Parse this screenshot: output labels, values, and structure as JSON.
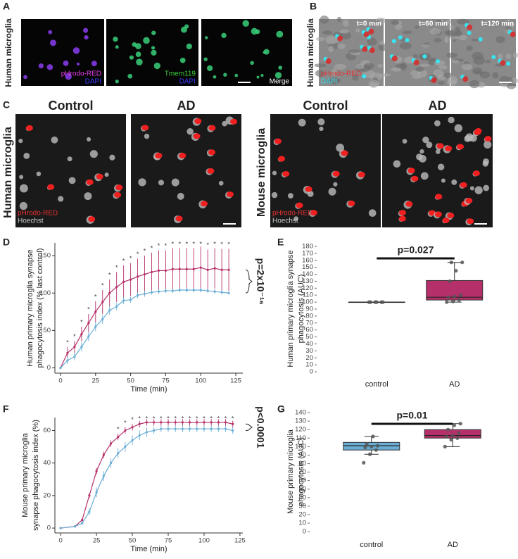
{
  "figure": {
    "A": {
      "letter": "A",
      "side_label": "Human microglia",
      "images": [
        {
          "labels": [
            "pHrodo-RED",
            "DAPI"
          ]
        },
        {
          "labels": [
            "Tmem119",
            "DAPI"
          ]
        },
        {
          "labels": [
            "Merge"
          ]
        }
      ]
    },
    "B": {
      "letter": "B",
      "side_label": "Human microglia",
      "images": [
        {
          "time": "t=0 min",
          "labels": [
            "pHrodo-RED",
            "DAPI"
          ]
        },
        {
          "time": "t=60 min"
        },
        {
          "time": "t=120 min"
        }
      ]
    },
    "C": {
      "letter": "C",
      "groups": [
        {
          "side_label": "Human microglia",
          "headers": [
            "Control",
            "AD"
          ],
          "labels": [
            "pHrodo-RED",
            "Hoechst"
          ]
        },
        {
          "side_label": "Mouse microglia",
          "headers": [
            "Control",
            "AD"
          ],
          "labels": [
            "pHrodo-RED",
            "Hoechst"
          ]
        }
      ]
    }
  },
  "chart_data": [
    {
      "type": "line",
      "panel_label": "D",
      "ylabel": [
        "Human primary microglia synapse",
        "phagocytosis index (% last control)"
      ],
      "xlabel": "Time (min)",
      "x": [
        0,
        5,
        10,
        15,
        20,
        25,
        30,
        35,
        40,
        45,
        50,
        55,
        60,
        65,
        70,
        75,
        80,
        85,
        90,
        95,
        100,
        105,
        110,
        115,
        120
      ],
      "series": [
        {
          "color": "#b5306a",
          "values": [
            0,
            20,
            28,
            45,
            60,
            75,
            88,
            100,
            108,
            115,
            118,
            122,
            125,
            128,
            130,
            130,
            132,
            132,
            132,
            132,
            134,
            131,
            133,
            131,
            131
          ],
          "errors": [
            0,
            8,
            8,
            10,
            12,
            14,
            16,
            18,
            20,
            22,
            22,
            24,
            25,
            26,
            27,
            27,
            28,
            28,
            28,
            28,
            28,
            27,
            27,
            28,
            28
          ]
        },
        {
          "color": "#6aaed6",
          "values": [
            0,
            10,
            15,
            28,
            42,
            55,
            65,
            77,
            82,
            90,
            91,
            97,
            99,
            101,
            102,
            103,
            103,
            104,
            104,
            104,
            104,
            103,
            102,
            101,
            100
          ],
          "errors": [
            0,
            5,
            5,
            6,
            6,
            6,
            6,
            6,
            5,
            5,
            4,
            4,
            4,
            3,
            3,
            3,
            3,
            3,
            3,
            3,
            3,
            3,
            3,
            3,
            2
          ]
        }
      ],
      "significance_symbol": "*",
      "significant_x": [
        5,
        10,
        15,
        20,
        25,
        30,
        35,
        40,
        45,
        50,
        55,
        60,
        65,
        70,
        75,
        80,
        85,
        90,
        95,
        100,
        105,
        110,
        115,
        120
      ],
      "p_label": "p=2x10⁻¹⁶",
      "xlim": [
        -4,
        130
      ],
      "xticks": [
        0,
        25,
        50,
        75,
        100,
        125
      ],
      "ylim": [
        -7,
        167
      ],
      "yticks": [
        0,
        50,
        100,
        150
      ]
    },
    {
      "type": "box",
      "panel_label": "E",
      "ylabel": [
        "Human primary microglia synapse",
        "phagocytosis (AUC)"
      ],
      "categories": [
        "control",
        "AD"
      ],
      "colors": [
        "#6aaed6",
        "#b5306a"
      ],
      "boxes": [
        {
          "min": 100,
          "q1": 100,
          "median": 100,
          "q3": 100,
          "max": 100,
          "points": [
            100,
            100,
            100,
            100,
            100,
            100
          ]
        },
        {
          "min": 100,
          "q1": 103,
          "median": 107,
          "q3": 131,
          "max": 157,
          "points": [
            100,
            101,
            103,
            107,
            108,
            110,
            130,
            145,
            157,
            157
          ]
        }
      ],
      "p_label": "p=0.027",
      "ylim": [
        -4,
        185
      ],
      "yticks": [
        0,
        10,
        20,
        30,
        40,
        50,
        60,
        70,
        80,
        90,
        100,
        110,
        120,
        130,
        140,
        150,
        160,
        170,
        180
      ]
    },
    {
      "type": "line",
      "panel_label": "F",
      "ylabel": [
        "Mouse primary microglia",
        "synapse phagocytosis index (%)"
      ],
      "xlabel": "Time (min)",
      "x": [
        0,
        10,
        15,
        20,
        25,
        30,
        35,
        40,
        45,
        50,
        55,
        60,
        65,
        70,
        75,
        80,
        85,
        90,
        95,
        100,
        105,
        110,
        115,
        120
      ],
      "series": [
        {
          "color": "#b5306a",
          "values": [
            0,
            1,
            5,
            20,
            35,
            45,
            52,
            56,
            60,
            62,
            64,
            65,
            65,
            65,
            65,
            65,
            65,
            65,
            65,
            65,
            65,
            65,
            65,
            64
          ],
          "errors": [
            0,
            0.5,
            1,
            1.5,
            2,
            2,
            2,
            2,
            2,
            2,
            2,
            2,
            2,
            2,
            2,
            2,
            2,
            2,
            2,
            2,
            2,
            2,
            2,
            2
          ]
        },
        {
          "color": "#6aaed6",
          "values": [
            0,
            1,
            3,
            10,
            22,
            32,
            40,
            46,
            50,
            54,
            57,
            59,
            60,
            61,
            61,
            61,
            61,
            61,
            61,
            61,
            61,
            61,
            61,
            60
          ],
          "errors": [
            0,
            0.5,
            1,
            2,
            3,
            3,
            3,
            3,
            3,
            3,
            3,
            3,
            2,
            2,
            2,
            2,
            2,
            2,
            2,
            2,
            2,
            2,
            2,
            2
          ]
        }
      ],
      "significance_symbol": "*",
      "significant_x": [
        40,
        45,
        50,
        55,
        60,
        65,
        70,
        75,
        80,
        85,
        90,
        95,
        100,
        105,
        110,
        115,
        120
      ],
      "p_label": "p<0.0001",
      "xlim": [
        -4,
        127
      ],
      "xticks": [
        0,
        25,
        50,
        75,
        100,
        125
      ],
      "ylim": [
        -3,
        68
      ],
      "yticks": [
        0,
        20,
        40,
        60
      ]
    },
    {
      "type": "box",
      "panel_label": "G",
      "ylabel": [
        "Mouse primary microglia",
        "phagocytosis (AUC)"
      ],
      "categories": [
        "control",
        "AD"
      ],
      "colors": [
        "#6aaed6",
        "#b5306a"
      ],
      "boxes": [
        {
          "min": 91,
          "q1": 96,
          "median": 101,
          "q3": 105,
          "max": 112,
          "points": [
            81,
            91,
            96,
            99,
            100,
            101,
            103,
            112
          ]
        },
        {
          "min": 100,
          "q1": 110,
          "median": 113,
          "q3": 120,
          "max": 127,
          "points": [
            100,
            108,
            110,
            112,
            113,
            116,
            120,
            125,
            127
          ]
        }
      ],
      "p_label": "p=0.01",
      "ylim": [
        -4,
        145
      ],
      "yticks": [
        0,
        10,
        20,
        30,
        40,
        50,
        60,
        70,
        80,
        90,
        100,
        110,
        120,
        130,
        140
      ]
    }
  ]
}
